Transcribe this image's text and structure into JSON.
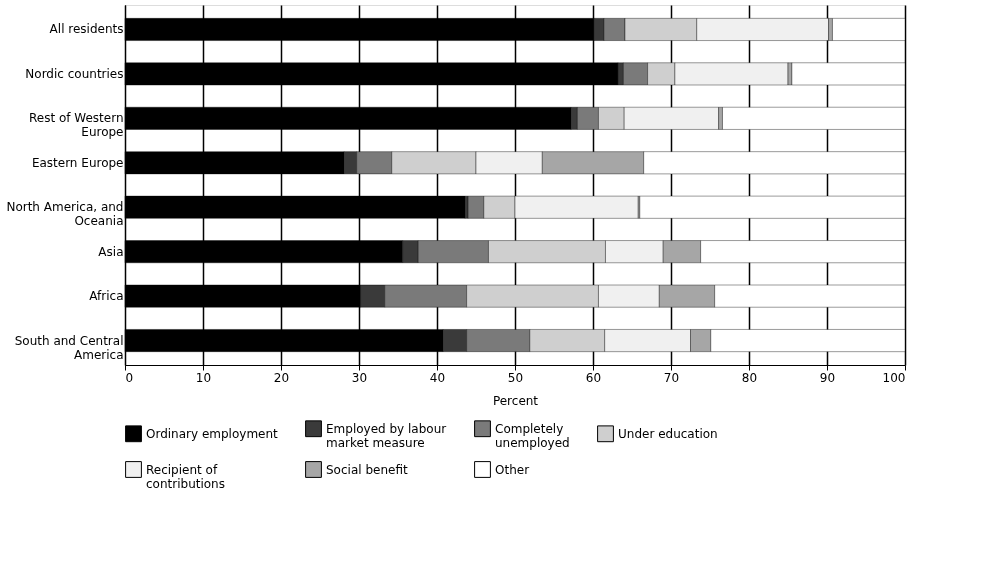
{
  "chart_data": {
    "type": "bar",
    "orientation": "horizontal",
    "stacked": true,
    "categories": [
      "All residents",
      "Nordic countries",
      "Rest of Western Europe",
      "Eastern Europe",
      "North America, and Oceania",
      "Asia",
      "Africa",
      "South and Central America"
    ],
    "series": [
      {
        "name": "Ordinary employment",
        "color": "#000000",
        "values": [
          60.1,
          63.2,
          57.2,
          28.1,
          43.6,
          35.6,
          30.2,
          40.8
        ]
      },
      {
        "name": "Employed by labour market measure",
        "color": "#3a3a3a",
        "values": [
          1.3,
          0.7,
          0.8,
          1.6,
          0.4,
          2.0,
          3.1,
          3.0
        ]
      },
      {
        "name": "Completely unemployed",
        "color": "#7a7a7a",
        "values": [
          2.7,
          3.1,
          2.7,
          4.5,
          2.0,
          9.0,
          10.5,
          8.1
        ]
      },
      {
        "name": "Under education",
        "color": "#cfcfcf",
        "values": [
          9.2,
          3.5,
          3.3,
          10.8,
          4.0,
          15.0,
          16.9,
          9.6
        ]
      },
      {
        "name": "Recipient of contributions",
        "color": "#f0f0f0",
        "values": [
          16.9,
          14.5,
          12.1,
          8.5,
          15.8,
          7.4,
          7.8,
          11.0
        ]
      },
      {
        "name": "Social benefit",
        "color": "#a6a6a6",
        "values": [
          0.5,
          0.5,
          0.5,
          13.0,
          0.2,
          4.8,
          7.1,
          2.6
        ]
      },
      {
        "name": "Other",
        "color": "#ffffff",
        "values": [
          9.3,
          14.5,
          23.4,
          33.5,
          34.0,
          26.2,
          24.4,
          24.9
        ]
      }
    ],
    "xlabel": "Percent",
    "xlim": [
      0,
      100
    ],
    "xticks": [
      0,
      10,
      20,
      30,
      40,
      50,
      60,
      70,
      80,
      90,
      100
    ],
    "grid": "x",
    "legend": "bottom"
  }
}
